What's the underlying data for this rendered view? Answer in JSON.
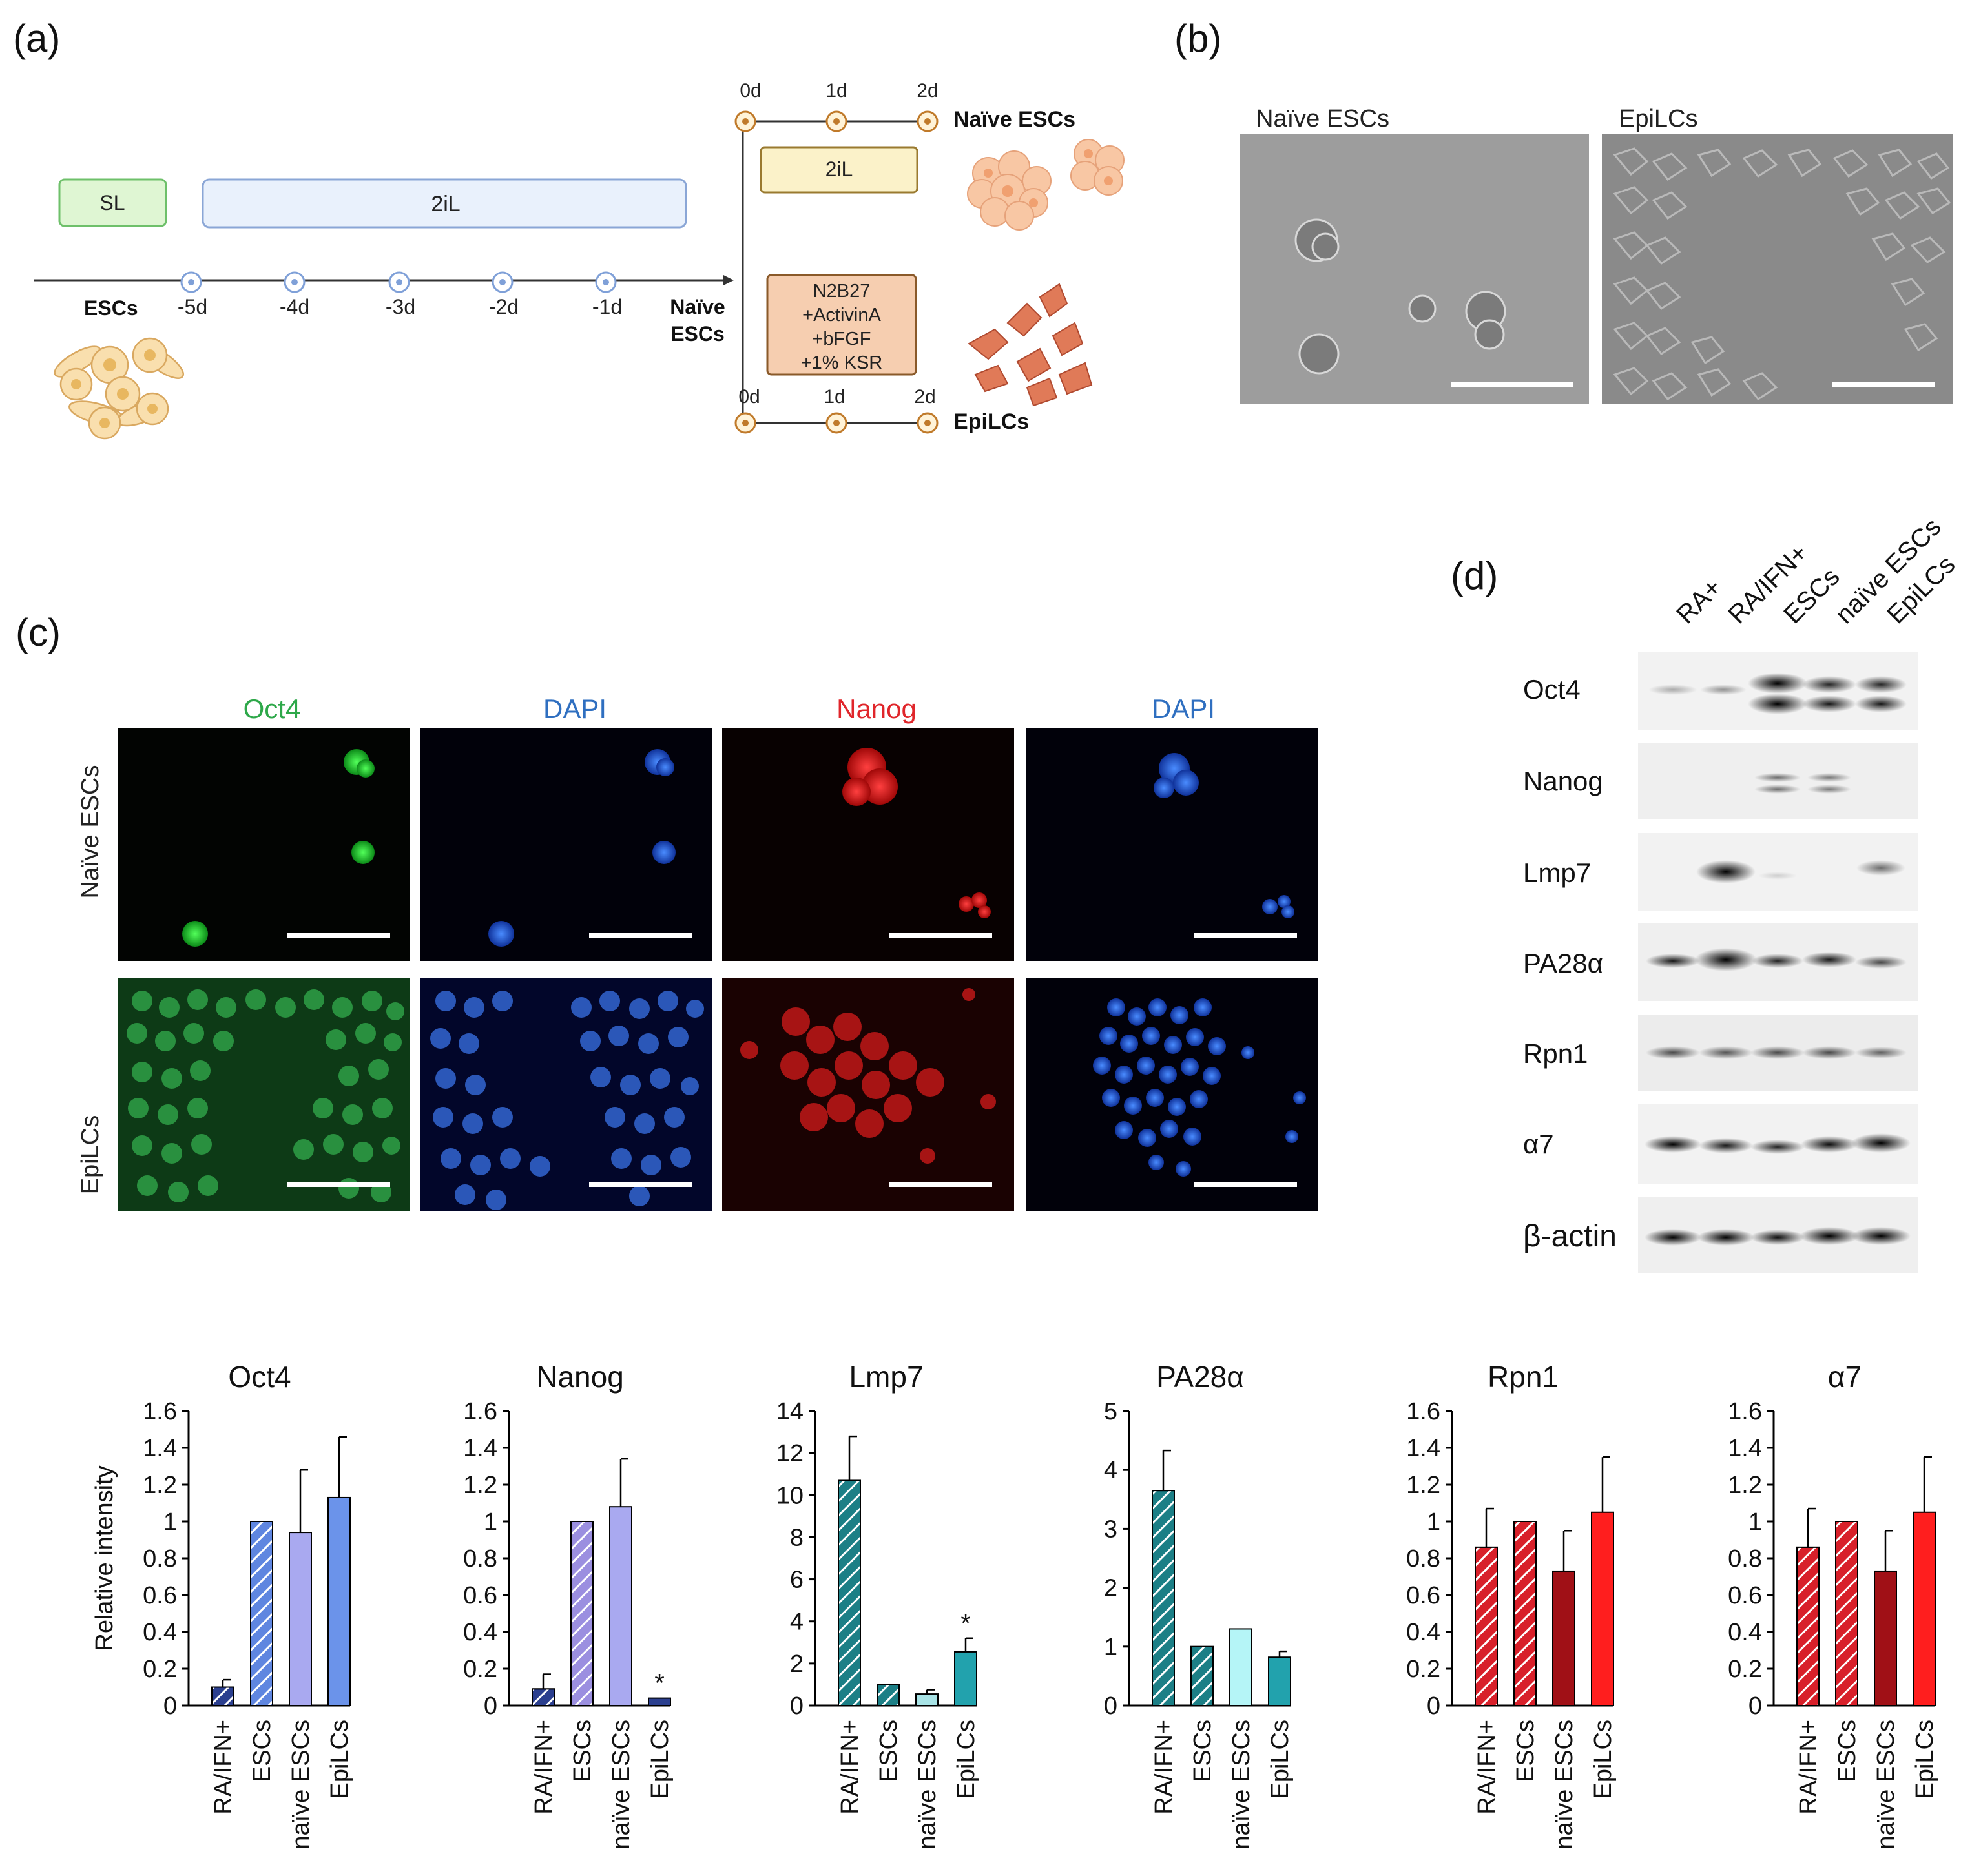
{
  "figure": {
    "panel_labels": [
      "(a)",
      "(b)",
      "(c)",
      "(d)"
    ]
  },
  "panel_a": {
    "sl_label": "SL",
    "twoil_label": "2iL",
    "escs_label": "ESCs",
    "days": [
      "-5d",
      "-4d",
      "-3d",
      "-2d",
      "-1d"
    ],
    "naive_label_line1": "Naïve",
    "naive_label_line2": "ESCs",
    "branch_days": [
      "0d",
      "1d",
      "2d"
    ],
    "branch_days_bottom": [
      "0d",
      "1d",
      "2d"
    ],
    "top_medium": "2iL",
    "bottom_medium": [
      "N2B27",
      "+ActivinA",
      "+bFGF",
      "+1% KSR"
    ],
    "top_result": "Naïve ESCs",
    "bottom_result": "EpiLCs"
  },
  "panel_b": {
    "titles": [
      "Naïve ESCs",
      "EpiLCs"
    ]
  },
  "panel_c": {
    "channels": [
      "Oct4",
      "DAPI",
      "Nanog",
      "DAPI"
    ],
    "channel_colors": [
      "#2ea84a",
      "#2f6fc0",
      "#e0262b",
      "#2f6fc0"
    ],
    "rows": [
      "Naïve ESCs",
      "EpiLCs"
    ]
  },
  "panel_d": {
    "lanes": [
      "RA+",
      "RA/IFN+",
      "ESCs",
      "naïve ESCs",
      "EpiLCs"
    ],
    "proteins": [
      "Oct4",
      "Nanog",
      "Lmp7",
      "PA28α",
      "Rpn1",
      "α7",
      "β-actin"
    ]
  },
  "chart_data": [
    {
      "type": "bar",
      "title": "Oct4",
      "ylabel": "Relative intensity",
      "categories": [
        "RA/IFN+",
        "ESCs",
        "naïve ESCs",
        "EpiLCs"
      ],
      "values": [
        0.1,
        1.0,
        0.94,
        1.13
      ],
      "errors": [
        0.04,
        0,
        0.34,
        0.33
      ],
      "yticks": [
        "0",
        "0.2",
        "0.4",
        "0.6",
        "0.8",
        "1",
        "1.2",
        "1.4",
        "1.6"
      ],
      "ylim": [
        0,
        1.6
      ],
      "colors": [
        "#2b3f8f",
        "#5f86e0",
        "#a9a9f0",
        "#6b93ea"
      ],
      "hatched": [
        true,
        true,
        false,
        false
      ],
      "significance": [
        "",
        "",
        "",
        ""
      ]
    },
    {
      "type": "bar",
      "title": "Nanog",
      "ylabel": "",
      "categories": [
        "RA/IFN+",
        "ESCs",
        "naïve ESCs",
        "EpiLCs"
      ],
      "values": [
        0.09,
        1.0,
        1.08,
        0.04
      ],
      "errors": [
        0.08,
        0,
        0.26,
        0
      ],
      "yticks": [
        "0",
        "0.2",
        "0.4",
        "0.6",
        "0.8",
        "1",
        "1.2",
        "1.4",
        "1.6"
      ],
      "ylim": [
        0,
        1.6
      ],
      "colors": [
        "#2b3f8f",
        "#9b8fe0",
        "#a9a9f0",
        "#2b3f8f"
      ],
      "hatched": [
        true,
        true,
        false,
        false
      ],
      "significance": [
        "",
        "",
        "",
        "*"
      ]
    },
    {
      "type": "bar",
      "title": "Lmp7",
      "ylabel": "",
      "categories": [
        "RA/IFN+",
        "ESCs",
        "naïve ESCs",
        "EpiLCs"
      ],
      "values": [
        10.7,
        1.0,
        0.55,
        2.55
      ],
      "errors": [
        2.1,
        0,
        0.2,
        0.65
      ],
      "yticks": [
        "0",
        "2",
        "4",
        "6",
        "8",
        "10",
        "12",
        "14"
      ],
      "ylim": [
        0,
        14
      ],
      "colors": [
        "#1c7f86",
        "#1c7f86",
        "#a8e3e6",
        "#22a2ad"
      ],
      "hatched": [
        true,
        true,
        false,
        false
      ],
      "significance": [
        "",
        "",
        "",
        "*"
      ]
    },
    {
      "type": "bar",
      "title": "PA28α",
      "ylabel": "",
      "categories": [
        "RA/IFN+",
        "ESCs",
        "naïve ESCs",
        "EpiLCs"
      ],
      "values": [
        3.65,
        1.0,
        1.3,
        0.82
      ],
      "errors": [
        0.68,
        0,
        0,
        0.1
      ],
      "yticks": [
        "0",
        "1",
        "2",
        "3",
        "4",
        "5"
      ],
      "ylim": [
        0,
        5
      ],
      "colors": [
        "#1c7f86",
        "#1c7f86",
        "#b5f5f7",
        "#22a2ad"
      ],
      "hatched": [
        true,
        true,
        false,
        false
      ],
      "significance": [
        "",
        "",
        "",
        ""
      ]
    },
    {
      "type": "bar",
      "title": "Rpn1",
      "ylabel": "",
      "categories": [
        "RA/IFN+",
        "ESCs",
        "naïve ESCs",
        "EpiLCs"
      ],
      "values": [
        0.86,
        1.0,
        0.73,
        1.05
      ],
      "errors": [
        0.21,
        0,
        0.22,
        0.3
      ],
      "yticks": [
        "0",
        "0.2",
        "0.4",
        "0.6",
        "0.8",
        "1",
        "1.2",
        "1.4",
        "1.6"
      ],
      "ylim": [
        0,
        1.6
      ],
      "colors": [
        "#d8202a",
        "#d8202a",
        "#a01016",
        "#ff1e1e"
      ],
      "hatched": [
        true,
        true,
        false,
        false
      ],
      "significance": [
        "",
        "",
        "",
        ""
      ]
    },
    {
      "type": "bar",
      "title": "α7",
      "ylabel": "",
      "categories": [
        "RA/IFN+",
        "ESCs",
        "naïve ESCs",
        "EpiLCs"
      ],
      "values": [
        0.86,
        1.0,
        0.73,
        1.05
      ],
      "errors": [
        0.21,
        0,
        0.22,
        0.3
      ],
      "yticks": [
        "0",
        "0.2",
        "0.4",
        "0.6",
        "0.8",
        "1",
        "1.2",
        "1.4",
        "1.6"
      ],
      "ylim": [
        0,
        1.6
      ],
      "colors": [
        "#d8202a",
        "#d8202a",
        "#a01016",
        "#ff1e1e"
      ],
      "hatched": [
        true,
        true,
        false,
        false
      ],
      "significance": [
        "",
        "",
        "",
        ""
      ]
    }
  ]
}
